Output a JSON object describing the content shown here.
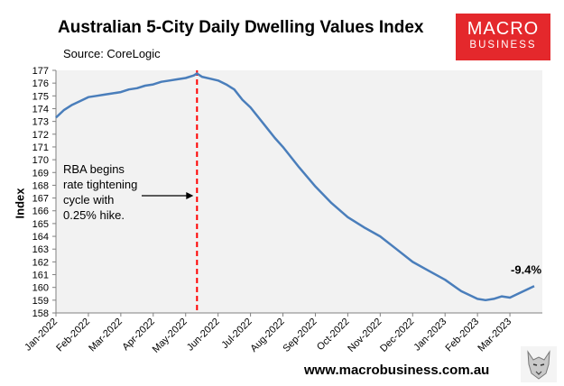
{
  "title": "Australian 5-City Daily Dwelling Values Index",
  "source": "Source: CoreLogic",
  "brand": {
    "line1": "MACRO",
    "line2": "BUSINESS",
    "color": "#e4282c",
    "url": "www.macrobusiness.com.au"
  },
  "colors": {
    "line": "#4a7ebb",
    "plot_bg": "#f2f2f2",
    "marker": "#ff0000"
  },
  "chart_data": {
    "type": "line",
    "title": "Australian 5-City Daily Dwelling Values Index",
    "xlabel": "",
    "ylabel": "Index",
    "ylim": [
      158,
      177
    ],
    "yticks": [
      158,
      159,
      160,
      161,
      162,
      163,
      164,
      165,
      166,
      167,
      168,
      169,
      170,
      171,
      172,
      173,
      174,
      175,
      176,
      177
    ],
    "x_range_months": [
      0,
      15
    ],
    "xtick_labels": [
      "Jan-2022",
      "Feb-2022",
      "Mar-2022",
      "Apr-2022",
      "May-2022",
      "Jun-2022",
      "Jul-2022",
      "Aug-2022",
      "Sep-2022",
      "Oct-2022",
      "Nov-2022",
      "Dec-2022",
      "Jan-2023",
      "Feb-2023",
      "Mar-2023"
    ],
    "grid": false,
    "series": [
      {
        "name": "5-City Daily Dwelling Values Index",
        "x": [
          0,
          0.25,
          0.5,
          0.75,
          1.0,
          1.25,
          1.5,
          1.75,
          2.0,
          2.25,
          2.5,
          2.75,
          3.0,
          3.25,
          3.5,
          3.75,
          4.0,
          4.25,
          4.35,
          4.5,
          4.75,
          5.0,
          5.25,
          5.5,
          5.75,
          6.0,
          6.25,
          6.5,
          6.75,
          7.0,
          7.5,
          8.0,
          8.5,
          9.0,
          9.5,
          10.0,
          10.5,
          11.0,
          11.5,
          12.0,
          12.5,
          13.0,
          13.25,
          13.5,
          13.75,
          14.0,
          14.25,
          14.5,
          14.75
        ],
        "values": [
          173.3,
          173.9,
          174.3,
          174.6,
          174.9,
          175.0,
          175.1,
          175.2,
          175.3,
          175.5,
          175.6,
          175.8,
          175.9,
          176.1,
          176.2,
          176.3,
          176.4,
          176.6,
          176.75,
          176.5,
          176.35,
          176.2,
          175.9,
          175.5,
          174.7,
          174.1,
          173.3,
          172.5,
          171.7,
          171.0,
          169.4,
          167.9,
          166.6,
          165.5,
          164.7,
          164.0,
          163.0,
          162.0,
          161.3,
          160.6,
          159.7,
          159.1,
          159.0,
          159.1,
          159.3,
          159.2,
          159.5,
          159.8,
          160.1
        ]
      }
    ],
    "vline": {
      "x": 4.35,
      "style": "dashed",
      "color": "#ff0000"
    },
    "annotations": {
      "rba": "RBA begins\nrate tightening\ncycle with\n0.25% hike.",
      "change": "-9.4%"
    }
  }
}
